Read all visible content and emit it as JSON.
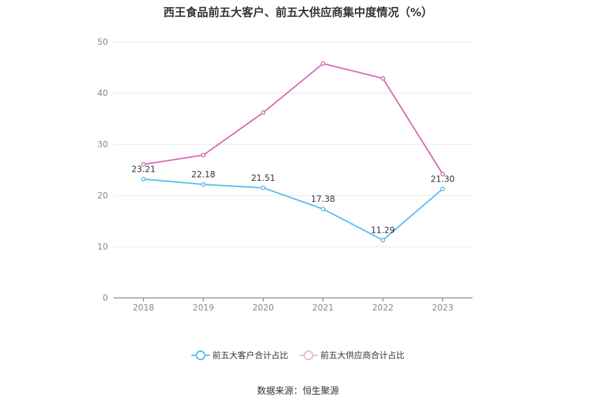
{
  "chart_data": {
    "type": "line",
    "title": "西王食品前五大客户、前五大供应商集中度情况（%）",
    "categories": [
      "2018",
      "2019",
      "2020",
      "2021",
      "2022",
      "2023"
    ],
    "ylim": [
      0,
      50
    ],
    "yticks": [
      0,
      10,
      20,
      30,
      40,
      50
    ],
    "grid": true,
    "legend_position": "bottom",
    "series": [
      {
        "name": "前五大客户合计占比",
        "color": "#5bbdf0",
        "values": [
          23.21,
          22.18,
          21.51,
          17.38,
          11.29,
          21.3
        ],
        "labels": [
          "23.21",
          "22.18",
          "21.51",
          "17.38",
          "11.29",
          "21.30"
        ]
      },
      {
        "name": "前五大供应商合计占比",
        "color": "#d96bb4",
        "values": [
          26.1,
          27.9,
          36.2,
          45.8,
          42.9,
          24.2
        ]
      }
    ]
  },
  "source": "数据来源：恒生聚源"
}
